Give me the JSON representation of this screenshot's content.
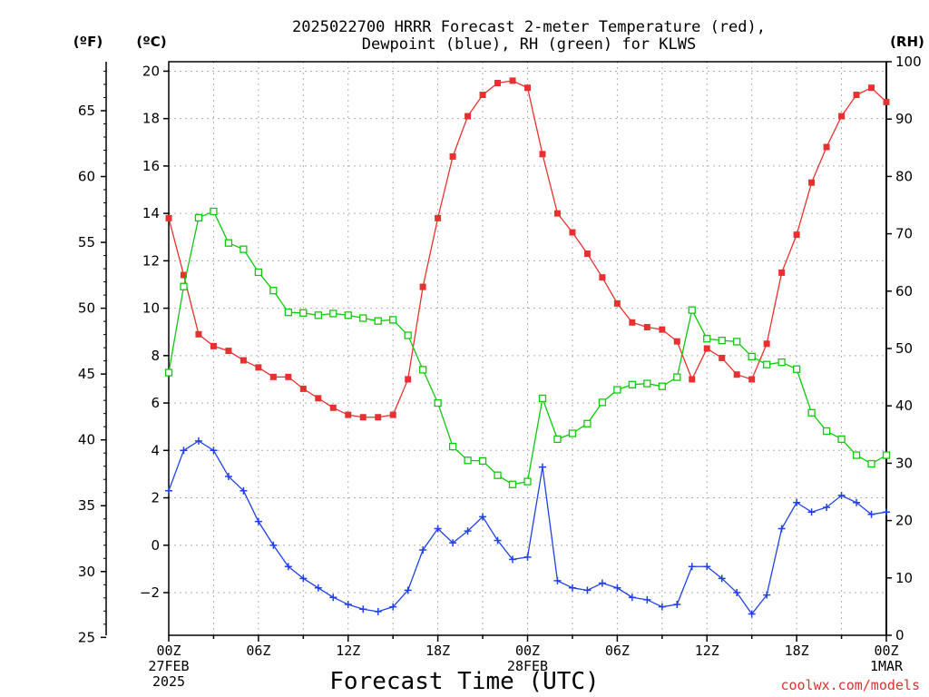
{
  "chart_data": {
    "type": "line",
    "title": [
      "2025022700 HRRR Forecast 2-meter Temperature (red),",
      "Dewpoint (blue), RH (green) for KLWS"
    ],
    "xlabel": "Forecast Time (UTC)",
    "credit": "coolwx.com/models",
    "units": {
      "left_f": "(ºF)",
      "left_c": "(ºC)",
      "right": "(RH)"
    },
    "x": [
      0,
      1,
      2,
      3,
      4,
      5,
      6,
      7,
      8,
      9,
      10,
      11,
      12,
      13,
      14,
      15,
      16,
      17,
      18,
      19,
      20,
      21,
      22,
      23,
      24,
      25,
      26,
      27,
      28,
      29,
      30,
      31,
      32,
      33,
      34,
      35,
      36,
      37,
      38,
      39,
      40,
      41,
      42,
      43,
      44,
      45,
      46,
      47,
      48
    ],
    "xlim": [
      0,
      48
    ],
    "x_ticks": [
      {
        "x": 0,
        "lines": [
          "00Z",
          "27FEB",
          "2025"
        ]
      },
      {
        "x": 6,
        "lines": [
          "06Z"
        ]
      },
      {
        "x": 12,
        "lines": [
          "12Z"
        ]
      },
      {
        "x": 18,
        "lines": [
          "18Z"
        ]
      },
      {
        "x": 24,
        "lines": [
          "00Z",
          "28FEB"
        ]
      },
      {
        "x": 30,
        "lines": [
          "06Z"
        ]
      },
      {
        "x": 36,
        "lines": [
          "12Z"
        ]
      },
      {
        "x": 42,
        "lines": [
          "18Z"
        ]
      },
      {
        "x": 48,
        "lines": [
          "00Z",
          "1MAR"
        ]
      }
    ],
    "ylim_c": [
      -3.8,
      20.4
    ],
    "ylim_rh": [
      0,
      100
    ],
    "y_ticks_c": [
      "20",
      "18",
      "16",
      "14",
      "12",
      "10",
      "8",
      "6",
      "4",
      "2",
      "0",
      "−2"
    ],
    "y_ticks_c_values": [
      20,
      18,
      16,
      14,
      12,
      10,
      8,
      6,
      4,
      2,
      0,
      -2
    ],
    "y_ticks_f": [
      "65",
      "60",
      "55",
      "50",
      "45",
      "40",
      "35",
      "30",
      "25"
    ],
    "y_ticks_f_values": [
      65,
      60,
      55,
      50,
      45,
      40,
      35,
      30,
      25
    ],
    "y_ticks_rh": [
      "100",
      "90",
      "80",
      "70",
      "60",
      "50",
      "40",
      "30",
      "20",
      "10",
      "0"
    ],
    "y_ticks_rh_values": [
      100,
      90,
      80,
      70,
      60,
      50,
      40,
      30,
      20,
      10,
      0
    ],
    "series": [
      {
        "name": "Temperature",
        "axis": "c",
        "color": "#e83030",
        "marker": "filled-square",
        "values": [
          13.8,
          11.4,
          8.9,
          8.4,
          8.2,
          7.8,
          7.5,
          7.1,
          7.1,
          6.6,
          6.2,
          5.8,
          5.5,
          5.4,
          5.4,
          5.5,
          7.0,
          10.9,
          13.8,
          16.4,
          18.1,
          19.0,
          19.5,
          19.6,
          19.3,
          16.5,
          14.0,
          13.2,
          12.3,
          11.3,
          10.2,
          9.4,
          9.2,
          9.1,
          8.6,
          7.0,
          8.3,
          7.9,
          7.2,
          7.0,
          8.5,
          11.5,
          13.1,
          15.3,
          16.8,
          18.1,
          19.0,
          19.3,
          18.7
        ]
      },
      {
        "name": "Dewpoint",
        "axis": "c",
        "color": "#2040e8",
        "marker": "plus",
        "values": [
          2.3,
          4.0,
          4.4,
          4.0,
          2.9,
          2.3,
          1.0,
          0.0,
          -0.9,
          -1.4,
          -1.8,
          -2.2,
          -2.5,
          -2.7,
          -2.8,
          -2.6,
          -1.9,
          -0.2,
          0.7,
          0.1,
          0.6,
          1.2,
          0.2,
          -0.6,
          -0.5,
          3.3,
          -1.5,
          -1.8,
          -1.9,
          -1.6,
          -1.8,
          -2.2,
          -2.3,
          -2.6,
          -2.5,
          -0.9,
          -0.9,
          -1.4,
          -2.0,
          -2.9,
          -2.1,
          0.7,
          1.8,
          1.4,
          1.6,
          2.1,
          1.8,
          1.3,
          1.4
        ]
      },
      {
        "name": "RH",
        "axis": "rh",
        "color": "#10c810",
        "marker": "open-square",
        "values": [
          45.8,
          60.8,
          72.8,
          73.9,
          68.4,
          67.3,
          63.3,
          60.1,
          56.3,
          56.2,
          55.8,
          56.1,
          55.8,
          55.3,
          54.8,
          55.0,
          52.3,
          46.3,
          40.5,
          32.9,
          30.5,
          30.4,
          27.9,
          26.3,
          26.8,
          41.3,
          34.2,
          35.2,
          36.9,
          40.6,
          42.8,
          43.7,
          43.9,
          43.4,
          45.0,
          56.7,
          51.7,
          51.4,
          51.2,
          48.6,
          47.2,
          47.6,
          46.4,
          38.8,
          35.6,
          34.2,
          31.4,
          29.9,
          31.4
        ]
      }
    ],
    "grid": true,
    "legend": "none"
  }
}
